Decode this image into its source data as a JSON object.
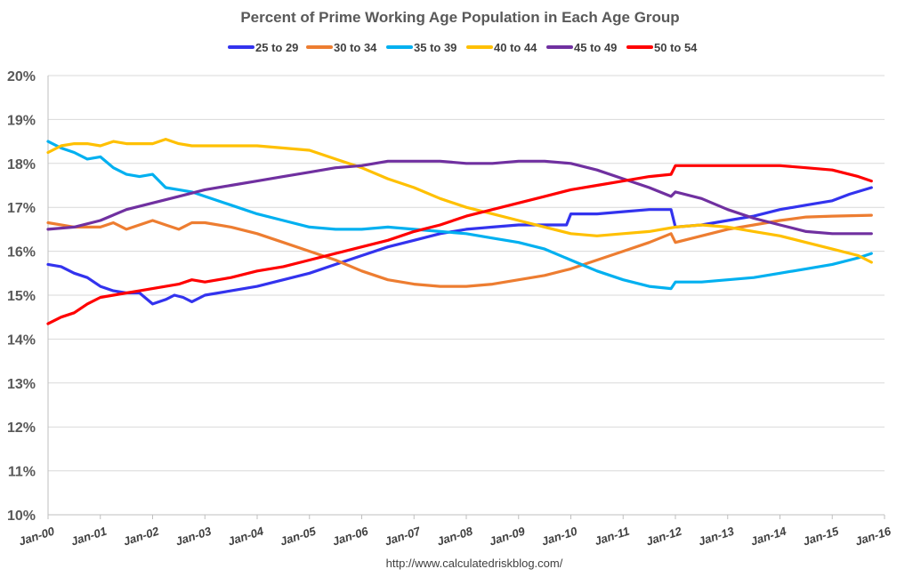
{
  "chart_data": {
    "type": "line",
    "title": "Percent of Prime Working Age Population in Each Age Group",
    "xlabel": "",
    "ylabel": "",
    "ylim": [
      10,
      20
    ],
    "xlim": [
      "2000-01",
      "2016-01"
    ],
    "y_ticks": [
      "10%",
      "11%",
      "12%",
      "13%",
      "14%",
      "15%",
      "16%",
      "17%",
      "18%",
      "19%",
      "20%"
    ],
    "x_ticks": [
      "Jan-00",
      "Jan-01",
      "Jan-02",
      "Jan-03",
      "Jan-04",
      "Jan-05",
      "Jan-06",
      "Jan-07",
      "Jan-08",
      "Jan-09",
      "Jan-10",
      "Jan-11",
      "Jan-12",
      "Jan-13",
      "Jan-14",
      "Jan-15",
      "Jan-16"
    ],
    "grid": "horizontal",
    "legend_position": "top",
    "source": "http://www.calculatedriskblog.com/",
    "series": [
      {
        "name": "25 to 29",
        "color": "#3333ee",
        "points": [
          [
            "2000-01",
            15.7
          ],
          [
            "2000-04",
            15.65
          ],
          [
            "2000-07",
            15.5
          ],
          [
            "2000-10",
            15.4
          ],
          [
            "2001-01",
            15.2
          ],
          [
            "2001-04",
            15.1
          ],
          [
            "2001-07",
            15.05
          ],
          [
            "2001-10",
            15.05
          ],
          [
            "2002-01",
            14.8
          ],
          [
            "2002-04",
            14.9
          ],
          [
            "2002-06",
            15.0
          ],
          [
            "2002-08",
            14.95
          ],
          [
            "2002-10",
            14.85
          ],
          [
            "2003-01",
            15.0
          ],
          [
            "2003-07",
            15.1
          ],
          [
            "2004-01",
            15.2
          ],
          [
            "2004-07",
            15.35
          ],
          [
            "2005-01",
            15.5
          ],
          [
            "2005-07",
            15.7
          ],
          [
            "2006-01",
            15.9
          ],
          [
            "2006-07",
            16.1
          ],
          [
            "2007-01",
            16.25
          ],
          [
            "2007-07",
            16.4
          ],
          [
            "2008-01",
            16.5
          ],
          [
            "2008-07",
            16.55
          ],
          [
            "2009-01",
            16.6
          ],
          [
            "2009-07",
            16.6
          ],
          [
            "2009-12",
            16.6
          ],
          [
            "2010-01",
            16.85
          ],
          [
            "2010-07",
            16.85
          ],
          [
            "2011-01",
            16.9
          ],
          [
            "2011-07",
            16.95
          ],
          [
            "2011-12",
            16.95
          ],
          [
            "2012-01",
            16.55
          ],
          [
            "2012-07",
            16.6
          ],
          [
            "2013-01",
            16.7
          ],
          [
            "2013-07",
            16.8
          ],
          [
            "2014-01",
            16.95
          ],
          [
            "2014-07",
            17.05
          ],
          [
            "2015-01",
            17.15
          ],
          [
            "2015-05",
            17.3
          ],
          [
            "2015-10",
            17.45
          ]
        ]
      },
      {
        "name": "30 to 34",
        "color": "#ed7d31",
        "points": [
          [
            "2000-01",
            16.65
          ],
          [
            "2000-07",
            16.55
          ],
          [
            "2001-01",
            16.55
          ],
          [
            "2001-04",
            16.65
          ],
          [
            "2001-07",
            16.5
          ],
          [
            "2002-01",
            16.7
          ],
          [
            "2002-04",
            16.6
          ],
          [
            "2002-07",
            16.5
          ],
          [
            "2002-10",
            16.65
          ],
          [
            "2003-01",
            16.65
          ],
          [
            "2003-07",
            16.55
          ],
          [
            "2004-01",
            16.4
          ],
          [
            "2004-07",
            16.2
          ],
          [
            "2005-01",
            16.0
          ],
          [
            "2005-07",
            15.8
          ],
          [
            "2006-01",
            15.55
          ],
          [
            "2006-07",
            15.35
          ],
          [
            "2007-01",
            15.25
          ],
          [
            "2007-07",
            15.2
          ],
          [
            "2008-01",
            15.2
          ],
          [
            "2008-07",
            15.25
          ],
          [
            "2009-01",
            15.35
          ],
          [
            "2009-07",
            15.45
          ],
          [
            "2010-01",
            15.6
          ],
          [
            "2010-07",
            15.8
          ],
          [
            "2011-01",
            16.0
          ],
          [
            "2011-07",
            16.2
          ],
          [
            "2011-12",
            16.4
          ],
          [
            "2012-01",
            16.2
          ],
          [
            "2012-07",
            16.35
          ],
          [
            "2013-01",
            16.5
          ],
          [
            "2013-07",
            16.6
          ],
          [
            "2014-01",
            16.7
          ],
          [
            "2014-07",
            16.78
          ],
          [
            "2015-01",
            16.8
          ],
          [
            "2015-10",
            16.82
          ]
        ]
      },
      {
        "name": "35 to 39",
        "color": "#00b0f0",
        "points": [
          [
            "2000-01",
            18.5
          ],
          [
            "2000-04",
            18.35
          ],
          [
            "2000-07",
            18.25
          ],
          [
            "2000-10",
            18.1
          ],
          [
            "2001-01",
            18.15
          ],
          [
            "2001-04",
            17.9
          ],
          [
            "2001-07",
            17.75
          ],
          [
            "2001-10",
            17.7
          ],
          [
            "2002-01",
            17.75
          ],
          [
            "2002-04",
            17.45
          ],
          [
            "2002-07",
            17.4
          ],
          [
            "2002-10",
            17.35
          ],
          [
            "2003-01",
            17.25
          ],
          [
            "2003-07",
            17.05
          ],
          [
            "2004-01",
            16.85
          ],
          [
            "2004-07",
            16.7
          ],
          [
            "2005-01",
            16.55
          ],
          [
            "2005-07",
            16.5
          ],
          [
            "2006-01",
            16.5
          ],
          [
            "2006-07",
            16.55
          ],
          [
            "2007-01",
            16.5
          ],
          [
            "2007-07",
            16.45
          ],
          [
            "2008-01",
            16.4
          ],
          [
            "2008-07",
            16.3
          ],
          [
            "2009-01",
            16.2
          ],
          [
            "2009-07",
            16.05
          ],
          [
            "2010-01",
            15.8
          ],
          [
            "2010-07",
            15.55
          ],
          [
            "2011-01",
            15.35
          ],
          [
            "2011-07",
            15.2
          ],
          [
            "2011-12",
            15.15
          ],
          [
            "2012-01",
            15.3
          ],
          [
            "2012-07",
            15.3
          ],
          [
            "2013-01",
            15.35
          ],
          [
            "2013-07",
            15.4
          ],
          [
            "2014-01",
            15.5
          ],
          [
            "2014-07",
            15.6
          ],
          [
            "2015-01",
            15.7
          ],
          [
            "2015-07",
            15.85
          ],
          [
            "2015-10",
            15.95
          ]
        ]
      },
      {
        "name": "40 to 44",
        "color": "#ffc000",
        "points": [
          [
            "2000-01",
            18.25
          ],
          [
            "2000-04",
            18.4
          ],
          [
            "2000-07",
            18.45
          ],
          [
            "2000-10",
            18.45
          ],
          [
            "2001-01",
            18.4
          ],
          [
            "2001-04",
            18.5
          ],
          [
            "2001-07",
            18.45
          ],
          [
            "2001-10",
            18.45
          ],
          [
            "2002-01",
            18.45
          ],
          [
            "2002-04",
            18.55
          ],
          [
            "2002-07",
            18.45
          ],
          [
            "2002-10",
            18.4
          ],
          [
            "2003-01",
            18.4
          ],
          [
            "2003-07",
            18.4
          ],
          [
            "2004-01",
            18.4
          ],
          [
            "2004-07",
            18.35
          ],
          [
            "2005-01",
            18.3
          ],
          [
            "2005-07",
            18.1
          ],
          [
            "2006-01",
            17.9
          ],
          [
            "2006-07",
            17.65
          ],
          [
            "2007-01",
            17.45
          ],
          [
            "2007-07",
            17.2
          ],
          [
            "2008-01",
            17.0
          ],
          [
            "2008-07",
            16.85
          ],
          [
            "2009-01",
            16.7
          ],
          [
            "2009-07",
            16.55
          ],
          [
            "2010-01",
            16.4
          ],
          [
            "2010-07",
            16.35
          ],
          [
            "2011-01",
            16.4
          ],
          [
            "2011-07",
            16.45
          ],
          [
            "2012-01",
            16.55
          ],
          [
            "2012-07",
            16.6
          ],
          [
            "2013-01",
            16.55
          ],
          [
            "2013-07",
            16.45
          ],
          [
            "2014-01",
            16.35
          ],
          [
            "2014-07",
            16.2
          ],
          [
            "2015-01",
            16.05
          ],
          [
            "2015-07",
            15.9
          ],
          [
            "2015-10",
            15.75
          ]
        ]
      },
      {
        "name": "45 to 49",
        "color": "#7030a0",
        "points": [
          [
            "2000-01",
            16.5
          ],
          [
            "2000-07",
            16.55
          ],
          [
            "2001-01",
            16.7
          ],
          [
            "2001-07",
            16.95
          ],
          [
            "2002-01",
            17.1
          ],
          [
            "2002-07",
            17.25
          ],
          [
            "2003-01",
            17.4
          ],
          [
            "2003-07",
            17.5
          ],
          [
            "2004-01",
            17.6
          ],
          [
            "2004-07",
            17.7
          ],
          [
            "2005-01",
            17.8
          ],
          [
            "2005-07",
            17.9
          ],
          [
            "2006-01",
            17.95
          ],
          [
            "2006-07",
            18.05
          ],
          [
            "2007-01",
            18.05
          ],
          [
            "2007-07",
            18.05
          ],
          [
            "2008-01",
            18.0
          ],
          [
            "2008-07",
            18.0
          ],
          [
            "2009-01",
            18.05
          ],
          [
            "2009-07",
            18.05
          ],
          [
            "2010-01",
            18.0
          ],
          [
            "2010-07",
            17.85
          ],
          [
            "2011-01",
            17.65
          ],
          [
            "2011-07",
            17.45
          ],
          [
            "2011-12",
            17.25
          ],
          [
            "2012-01",
            17.35
          ],
          [
            "2012-07",
            17.2
          ],
          [
            "2013-01",
            16.95
          ],
          [
            "2013-07",
            16.75
          ],
          [
            "2014-01",
            16.6
          ],
          [
            "2014-07",
            16.45
          ],
          [
            "2015-01",
            16.4
          ],
          [
            "2015-10",
            16.4
          ]
        ]
      },
      {
        "name": "50 to 54",
        "color": "#ff0000",
        "points": [
          [
            "2000-01",
            14.35
          ],
          [
            "2000-04",
            14.5
          ],
          [
            "2000-07",
            14.6
          ],
          [
            "2000-10",
            14.8
          ],
          [
            "2001-01",
            14.95
          ],
          [
            "2001-04",
            15.0
          ],
          [
            "2001-07",
            15.05
          ],
          [
            "2001-10",
            15.1
          ],
          [
            "2002-01",
            15.15
          ],
          [
            "2002-04",
            15.2
          ],
          [
            "2002-07",
            15.25
          ],
          [
            "2002-10",
            15.35
          ],
          [
            "2003-01",
            15.3
          ],
          [
            "2003-07",
            15.4
          ],
          [
            "2004-01",
            15.55
          ],
          [
            "2004-07",
            15.65
          ],
          [
            "2005-01",
            15.8
          ],
          [
            "2005-07",
            15.95
          ],
          [
            "2006-01",
            16.1
          ],
          [
            "2006-07",
            16.25
          ],
          [
            "2007-01",
            16.45
          ],
          [
            "2007-07",
            16.6
          ],
          [
            "2008-01",
            16.8
          ],
          [
            "2008-07",
            16.95
          ],
          [
            "2009-01",
            17.1
          ],
          [
            "2009-07",
            17.25
          ],
          [
            "2010-01",
            17.4
          ],
          [
            "2010-07",
            17.5
          ],
          [
            "2011-01",
            17.6
          ],
          [
            "2011-07",
            17.7
          ],
          [
            "2011-12",
            17.75
          ],
          [
            "2012-01",
            17.95
          ],
          [
            "2012-07",
            17.95
          ],
          [
            "2013-01",
            17.95
          ],
          [
            "2013-07",
            17.95
          ],
          [
            "2014-01",
            17.95
          ],
          [
            "2014-07",
            17.9
          ],
          [
            "2015-01",
            17.85
          ],
          [
            "2015-07",
            17.7
          ],
          [
            "2015-10",
            17.6
          ]
        ]
      }
    ]
  }
}
